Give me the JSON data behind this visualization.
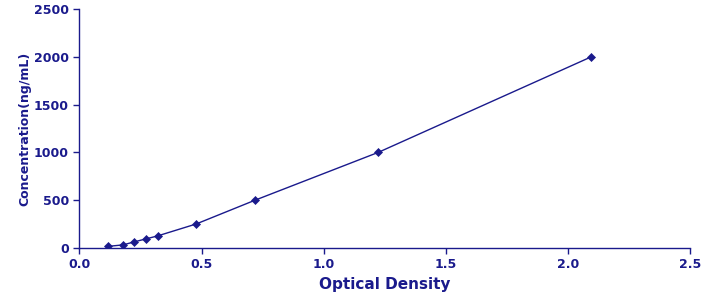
{
  "x_data": [
    0.117,
    0.179,
    0.224,
    0.272,
    0.32,
    0.478,
    0.72,
    1.224,
    2.096
  ],
  "y_data": [
    15.6,
    31.25,
    62.5,
    93.75,
    125,
    250,
    500,
    1000,
    2000
  ],
  "line_color": "#1a1a8c",
  "marker_color": "#1a1a8c",
  "marker_style": "D",
  "marker_size": 4,
  "line_style": "-",
  "line_width": 1.0,
  "xlabel": "Optical Density",
  "ylabel": "Concentration(ng/mL)",
  "xlim": [
    0,
    2.5
  ],
  "ylim": [
    0,
    2500
  ],
  "xticks": [
    0,
    0.5,
    1,
    1.5,
    2,
    2.5
  ],
  "yticks": [
    0,
    500,
    1000,
    1500,
    2000,
    2500
  ],
  "xlabel_fontsize": 11,
  "ylabel_fontsize": 9,
  "tick_fontsize": 9,
  "bg_color": "#ffffff",
  "figure_bg": "#ffffff",
  "border_color": "#cccccc"
}
